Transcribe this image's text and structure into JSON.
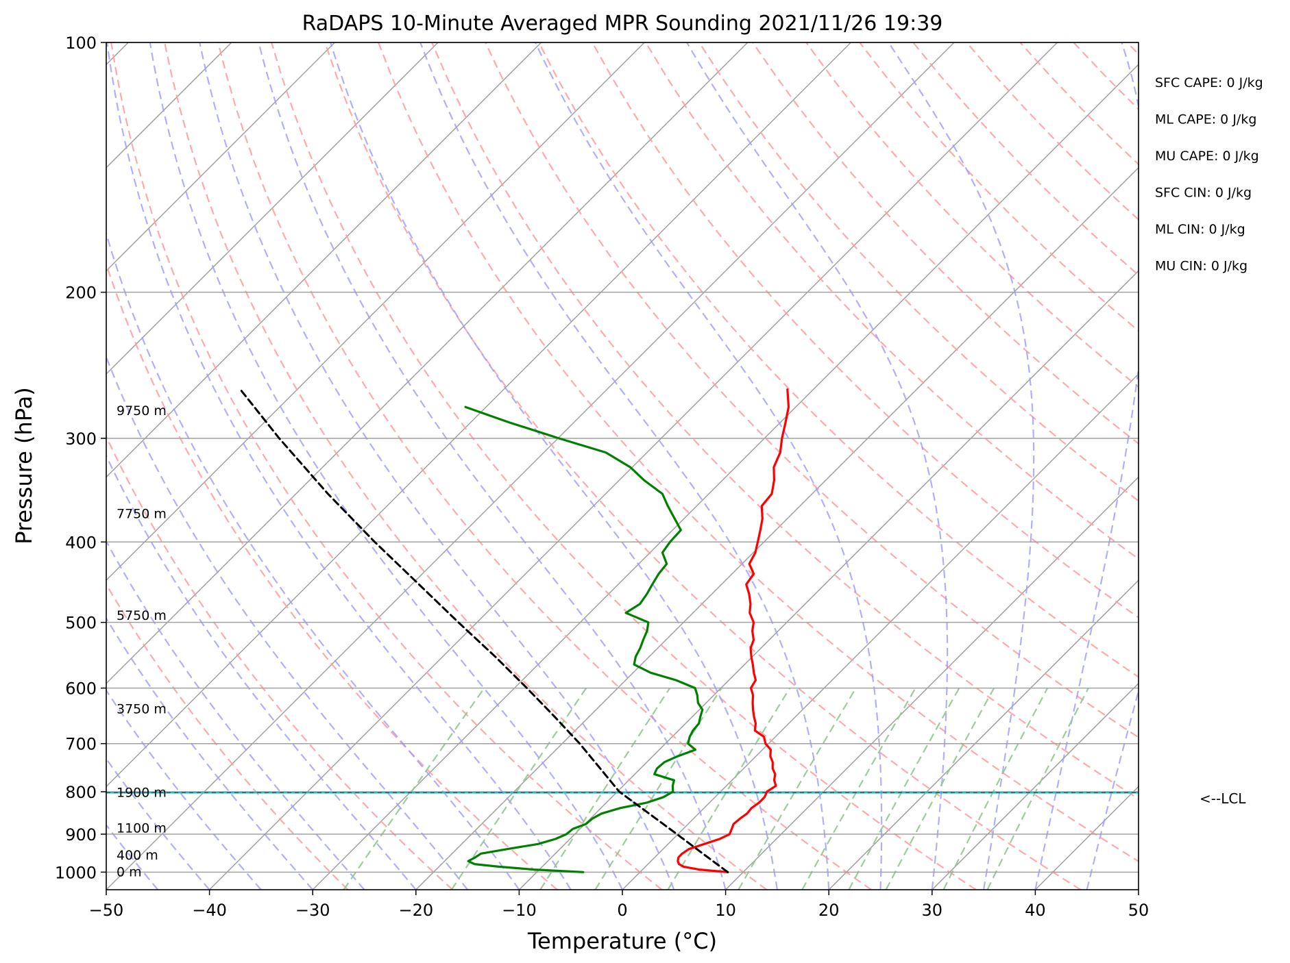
{
  "chart_data": {
    "type": "skew-t sounding",
    "title": "RaDAPS 10-Minute Averaged MPR Sounding 2021/11/26 19:39",
    "xlabel": "Temperature (°C)",
    "ylabel": "Pressure (hPa)",
    "xlim": [
      -50,
      50
    ],
    "ylim": [
      1050,
      100
    ],
    "y_scale": "log",
    "skew_deg": 45,
    "grid": true,
    "x_ticks": [
      -50,
      -40,
      -30,
      -20,
      -10,
      0,
      10,
      20,
      30,
      40,
      50
    ],
    "x_tick_labels": [
      "−50",
      "−40",
      "−30",
      "−20",
      "−10",
      "0",
      "10",
      "20",
      "30",
      "40",
      "50"
    ],
    "y_ticks": [
      1000,
      900,
      800,
      700,
      600,
      500,
      400,
      300,
      200,
      100
    ],
    "y_tick_labels": [
      "1000",
      "900",
      "800",
      "700",
      "600",
      "500",
      "400",
      "300",
      "200",
      "100"
    ],
    "temperature_profile": {
      "color": "#ff0000",
      "points": [
        [
          1000,
          8.5
        ],
        [
          993,
          5.5
        ],
        [
          985,
          3.7
        ],
        [
          978,
          3.0
        ],
        [
          970,
          2.6
        ],
        [
          960,
          2.3
        ],
        [
          950,
          2.3
        ],
        [
          938,
          2.5
        ],
        [
          925,
          3.5
        ],
        [
          912,
          4.5
        ],
        [
          900,
          5.0
        ],
        [
          887,
          4.7
        ],
        [
          875,
          4.4
        ],
        [
          862,
          4.5
        ],
        [
          850,
          4.7
        ],
        [
          837,
          4.6
        ],
        [
          825,
          4.8
        ],
        [
          812,
          4.8
        ],
        [
          800,
          4.5
        ],
        [
          787,
          4.8
        ],
        [
          775,
          4.1
        ],
        [
          762,
          3.6
        ],
        [
          750,
          2.8
        ],
        [
          737,
          2.2
        ],
        [
          725,
          1.4
        ],
        [
          712,
          0.8
        ],
        [
          700,
          -0.3
        ],
        [
          687,
          -1.1
        ],
        [
          675,
          -2.6
        ],
        [
          662,
          -3.2
        ],
        [
          650,
          -4.0
        ],
        [
          637,
          -4.8
        ],
        [
          625,
          -5.5
        ],
        [
          612,
          -6.2
        ],
        [
          600,
          -7.1
        ],
        [
          587,
          -7.4
        ],
        [
          575,
          -8.3
        ],
        [
          562,
          -9.2
        ],
        [
          550,
          -10.1
        ],
        [
          537,
          -11.0
        ],
        [
          525,
          -11.5
        ],
        [
          512,
          -12.5
        ],
        [
          500,
          -13.2
        ],
        [
          487,
          -14.5
        ],
        [
          475,
          -15.3
        ],
        [
          462,
          -16.4
        ],
        [
          450,
          -17.6
        ],
        [
          437,
          -17.9
        ],
        [
          425,
          -19.3
        ],
        [
          412,
          -19.8
        ],
        [
          400,
          -20.6
        ],
        [
          387,
          -21.5
        ],
        [
          375,
          -22.4
        ],
        [
          362,
          -23.7
        ],
        [
          350,
          -23.9
        ],
        [
          337,
          -25.0
        ],
        [
          325,
          -26.3
        ],
        [
          312,
          -27.1
        ],
        [
          300,
          -28.3
        ],
        [
          287,
          -29.5
        ],
        [
          275,
          -30.7
        ],
        [
          262,
          -32.5
        ]
      ]
    },
    "dewpoint_profile": {
      "color": "#008000",
      "points": [
        [
          1000,
          -5.5
        ],
        [
          993,
          -10.5
        ],
        [
          985,
          -14.2
        ],
        [
          978,
          -16.8
        ],
        [
          970,
          -17.7
        ],
        [
          960,
          -17.4
        ],
        [
          950,
          -17.2
        ],
        [
          938,
          -15.1
        ],
        [
          925,
          -12.6
        ],
        [
          912,
          -11.4
        ],
        [
          900,
          -10.8
        ],
        [
          887,
          -10.7
        ],
        [
          875,
          -9.9
        ],
        [
          862,
          -9.8
        ],
        [
          850,
          -9.4
        ],
        [
          837,
          -8.1
        ],
        [
          825,
          -6.1
        ],
        [
          812,
          -5.0
        ],
        [
          800,
          -4.6
        ],
        [
          787,
          -5.2
        ],
        [
          775,
          -5.6
        ],
        [
          762,
          -8.1
        ],
        [
          750,
          -8.4
        ],
        [
          737,
          -8.3
        ],
        [
          725,
          -7.6
        ],
        [
          712,
          -6.5
        ],
        [
          700,
          -7.8
        ],
        [
          687,
          -8.3
        ],
        [
          675,
          -8.6
        ],
        [
          662,
          -8.7
        ],
        [
          650,
          -9.2
        ],
        [
          637,
          -9.7
        ],
        [
          625,
          -10.8
        ],
        [
          612,
          -11.6
        ],
        [
          600,
          -12.5
        ],
        [
          587,
          -15.1
        ],
        [
          575,
          -18.3
        ],
        [
          562,
          -20.7
        ],
        [
          550,
          -21.3
        ],
        [
          537,
          -21.7
        ],
        [
          525,
          -22.2
        ],
        [
          512,
          -22.7
        ],
        [
          500,
          -23.4
        ],
        [
          487,
          -26.5
        ],
        [
          475,
          -26.0
        ],
        [
          462,
          -26.3
        ],
        [
          450,
          -26.7
        ],
        [
          437,
          -27.1
        ],
        [
          425,
          -27.3
        ],
        [
          412,
          -28.8
        ],
        [
          400,
          -29.1
        ],
        [
          387,
          -29.2
        ],
        [
          375,
          -30.9
        ],
        [
          362,
          -32.8
        ],
        [
          350,
          -34.5
        ],
        [
          337,
          -37.6
        ],
        [
          325,
          -40.2
        ],
        [
          312,
          -44.0
        ],
        [
          300,
          -49.9
        ],
        [
          287,
          -56.3
        ],
        [
          275,
          -62.0
        ]
      ]
    },
    "parcel_profile": {
      "color": "#000000",
      "style": "dashed",
      "points": [
        [
          1000,
          8.5
        ],
        [
          950,
          4.3
        ],
        [
          900,
          -0.1
        ],
        [
          850,
          -4.8
        ],
        [
          800,
          -9.8
        ],
        [
          750,
          -13.9
        ],
        [
          700,
          -18.3
        ],
        [
          650,
          -23.3
        ],
        [
          600,
          -28.8
        ],
        [
          550,
          -34.9
        ],
        [
          500,
          -41.8
        ],
        [
          450,
          -49.3
        ],
        [
          400,
          -57.7
        ],
        [
          350,
          -66.9
        ],
        [
          300,
          -77.0
        ],
        [
          262,
          -85.5
        ]
      ]
    },
    "lcl": {
      "pressure": 802,
      "label": "<--LCL",
      "color": "#17becf"
    },
    "height_labels": [
      {
        "pressure": 1000,
        "label": "0 m"
      },
      {
        "pressure": 955,
        "label": "400 m"
      },
      {
        "pressure": 886,
        "label": "1100 m"
      },
      {
        "pressure": 802,
        "label": "1900 m"
      },
      {
        "pressure": 636,
        "label": "3750 m"
      },
      {
        "pressure": 491,
        "label": "5750 m"
      },
      {
        "pressure": 370,
        "label": "7750 m"
      },
      {
        "pressure": 278,
        "label": "9750 m"
      }
    ],
    "indices": [
      "SFC CAPE: 0 J/kg",
      "ML CAPE: 0 J/kg",
      "MU CAPE: 0 J/kg",
      "SFC CIN: 0 J/kg",
      "ML CIN: 0 J/kg",
      "MU CIN: 0 J/kg"
    ],
    "background_lines": {
      "isotherms": {
        "color": "#a0a0a0"
      },
      "dry_adiabats": {
        "color": "#ff9b9b",
        "style": "dashed"
      },
      "moist_adiabats": {
        "color": "#9b9bff",
        "style": "dashed"
      },
      "mixing_ratio_lines": {
        "color": "#90c890",
        "style": "dashed",
        "top_pressure": 600
      }
    }
  }
}
